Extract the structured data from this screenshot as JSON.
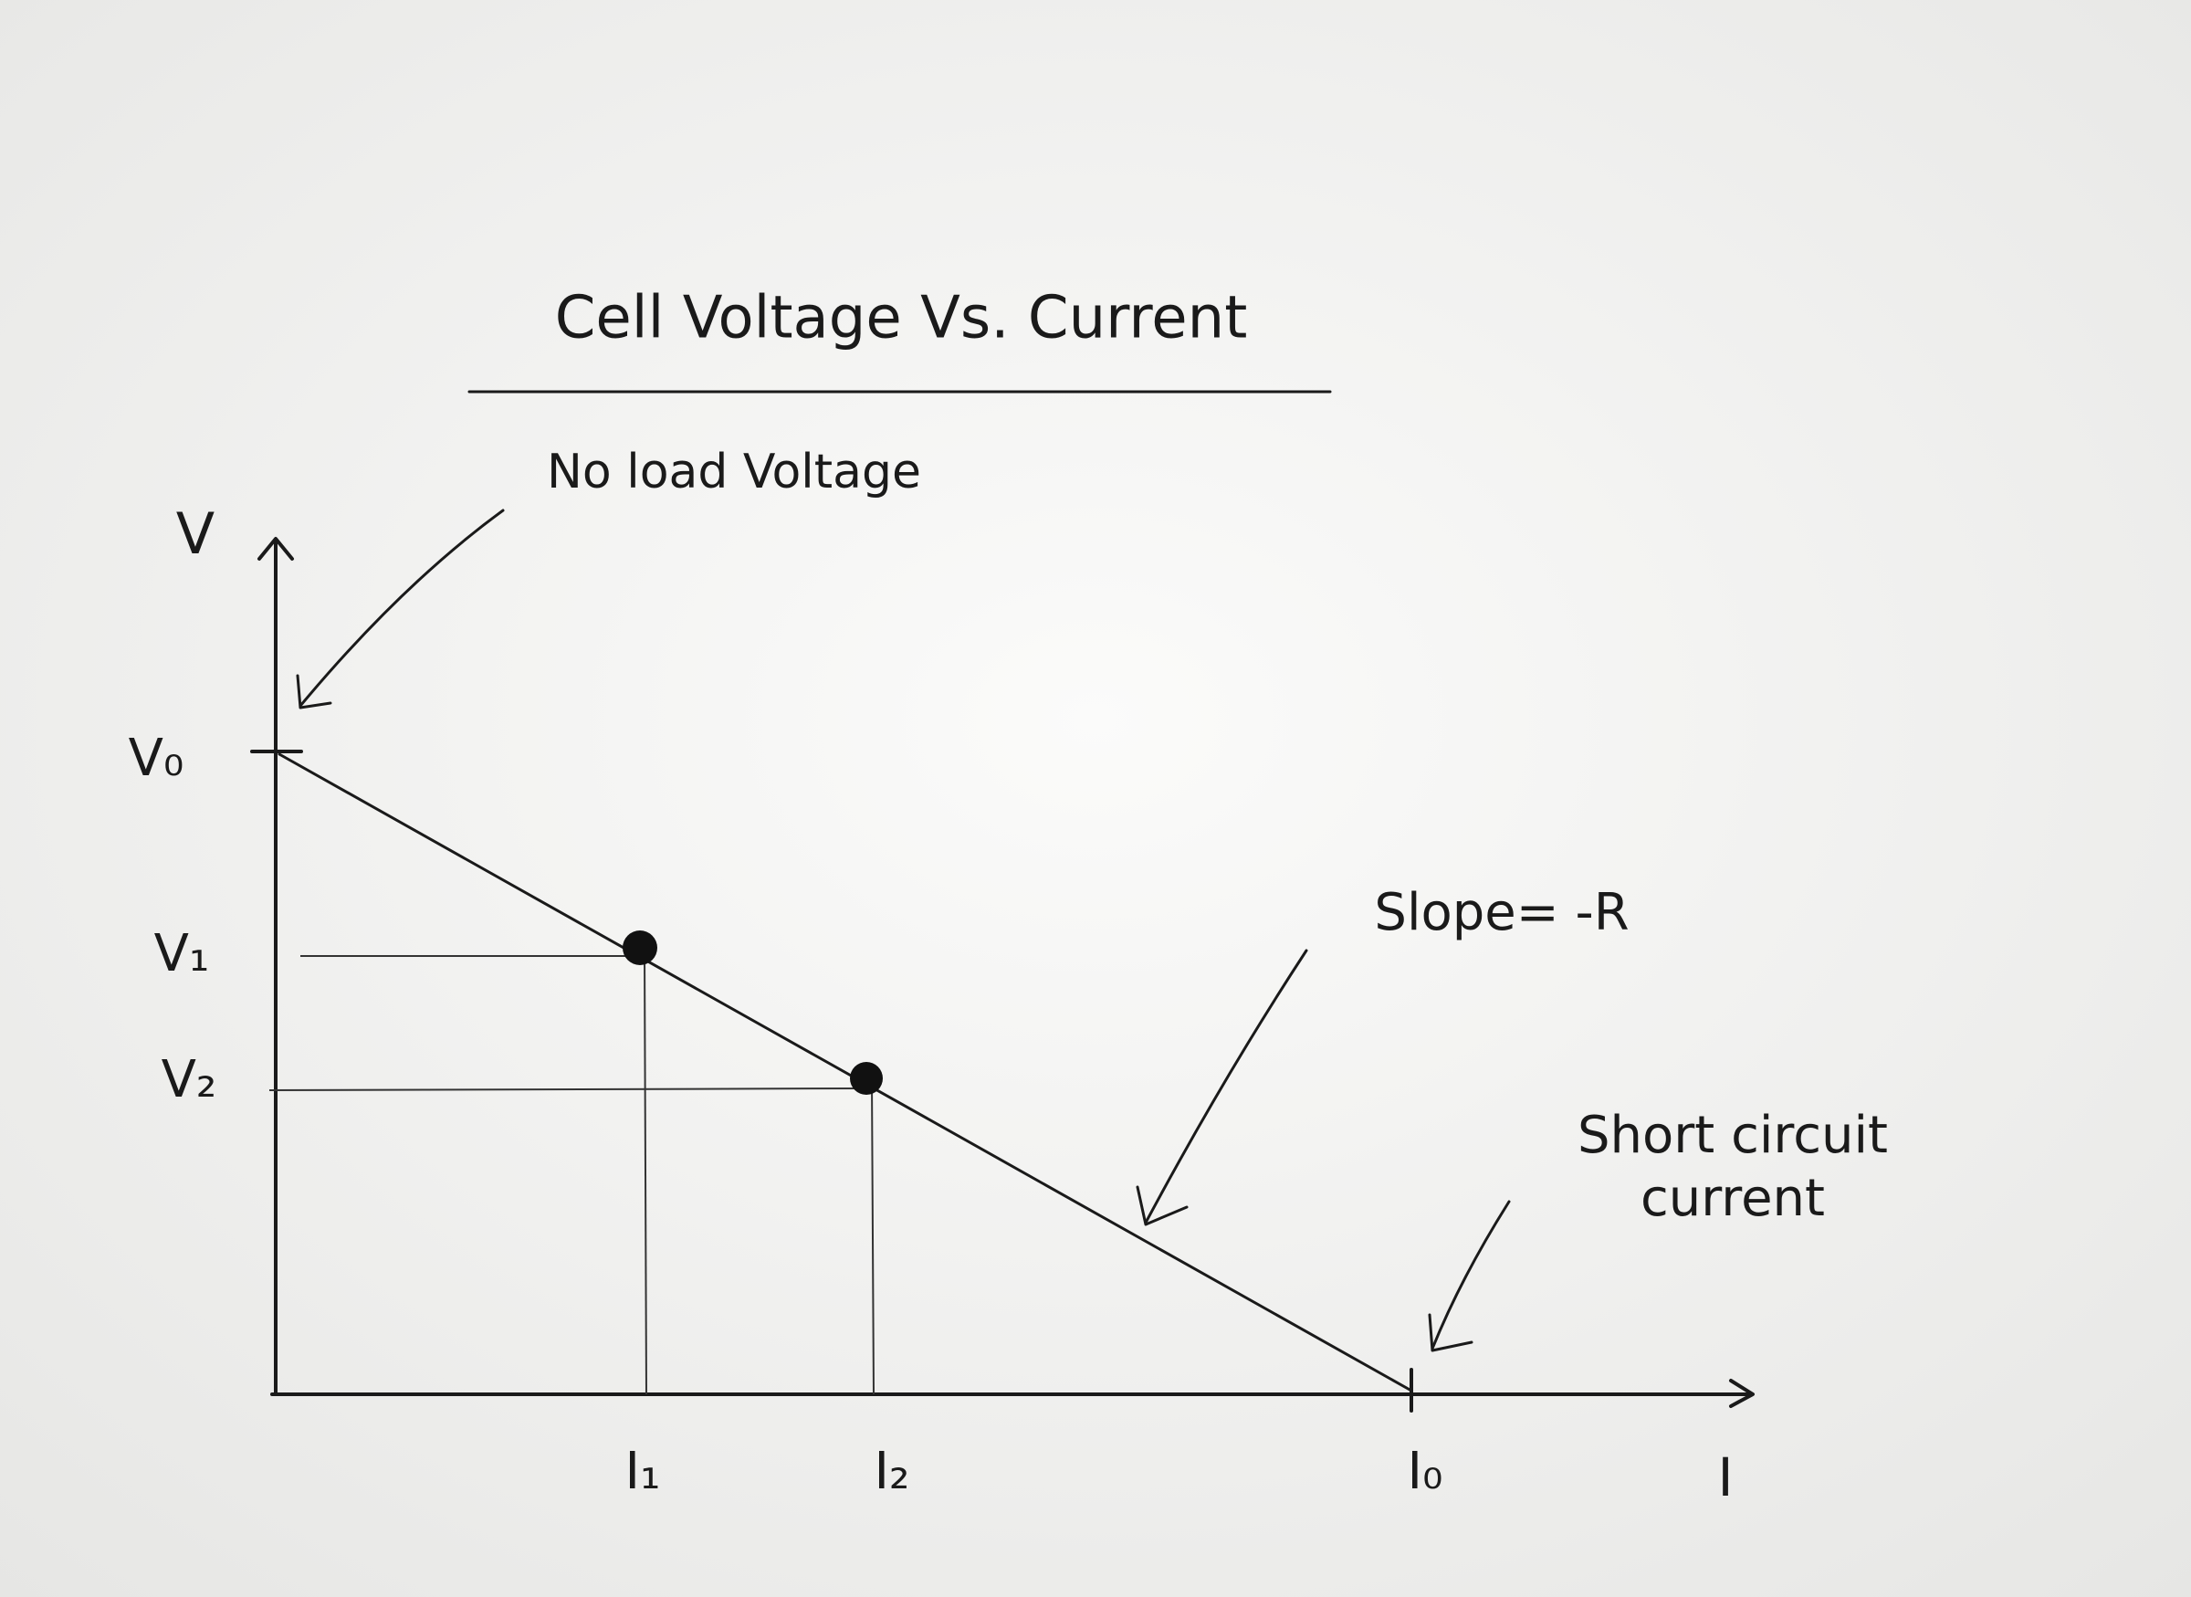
{
  "title": "Cell Voltage Vs. Current",
  "axes": {
    "y_label": "V",
    "x_label": "I"
  },
  "y_ticks": [
    "V₀",
    "V₁",
    "V₂"
  ],
  "x_ticks": [
    "I₁",
    "I₂",
    "I₀"
  ],
  "annotations": {
    "no_load": "No load Voltage",
    "slope": "Slope= -R",
    "short_circuit": [
      "Short circuit",
      "current"
    ]
  }
}
